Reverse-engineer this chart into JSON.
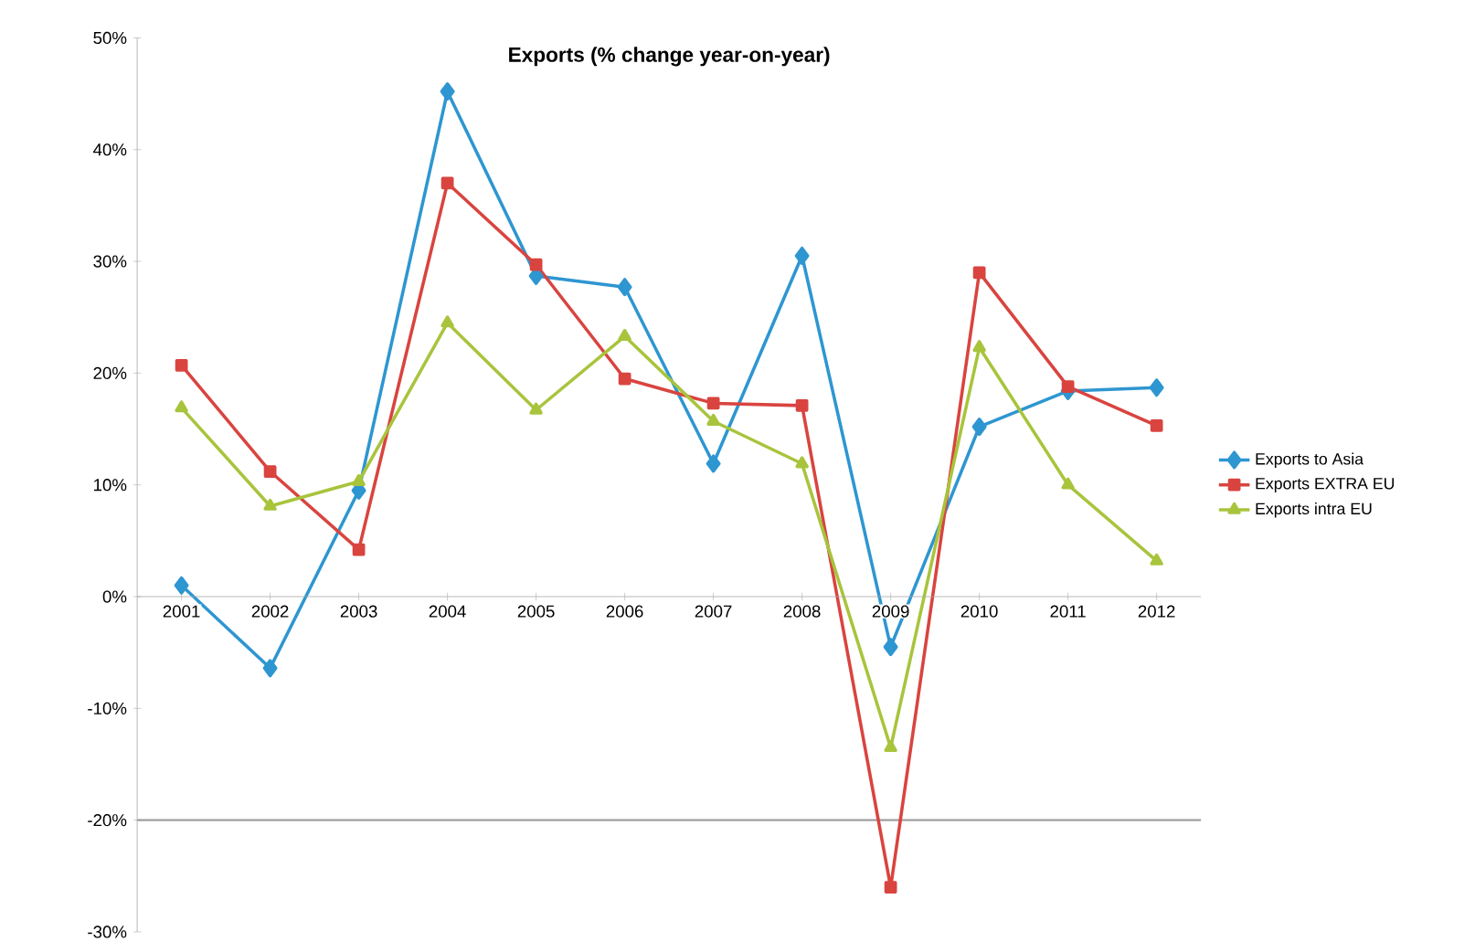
{
  "chart_data": {
    "type": "line",
    "title": "Exports (% change year-on-year)",
    "categories": [
      "2001",
      "2002",
      "2003",
      "2004",
      "2005",
      "2006",
      "2007",
      "2008",
      "2009",
      "2010",
      "2011",
      "2012"
    ],
    "series": [
      {
        "name": "Exports to Asia",
        "color": "#2e96d1",
        "marker": "diamond",
        "values": [
          1.0,
          -6.4,
          9.5,
          45.2,
          28.7,
          27.7,
          11.9,
          30.5,
          -4.5,
          15.2,
          18.4,
          18.7
        ]
      },
      {
        "name": "Exports EXTRA EU",
        "color": "#d9443f",
        "marker": "square",
        "values": [
          20.7,
          11.2,
          4.2,
          37.0,
          29.7,
          19.5,
          17.3,
          17.1,
          -26.0,
          29.0,
          18.8,
          15.3
        ]
      },
      {
        "name": "Exports intra EU",
        "color": "#a8c43c",
        "marker": "triangle",
        "values": [
          16.9,
          8.1,
          10.3,
          24.5,
          16.7,
          23.3,
          15.7,
          11.9,
          -13.5,
          22.3,
          10.0,
          3.2
        ]
      }
    ],
    "ylim": [
      -30,
      50
    ],
    "yticks": [
      {
        "value": -30,
        "label": "-30%"
      },
      {
        "value": -20,
        "label": "-20%"
      },
      {
        "value": -10,
        "label": "-10%"
      },
      {
        "value": 0,
        "label": "0%"
      },
      {
        "value": 10,
        "label": "10%"
      },
      {
        "value": 20,
        "label": "20%"
      },
      {
        "value": 30,
        "label": "30%"
      },
      {
        "value": 40,
        "label": "40%"
      },
      {
        "value": 50,
        "label": "50%"
      }
    ],
    "ref_lines": [
      {
        "axis": "y",
        "value": -20,
        "color": "#a0a0a0"
      }
    ],
    "legend": "right",
    "grid": false,
    "line_style": "solid"
  }
}
